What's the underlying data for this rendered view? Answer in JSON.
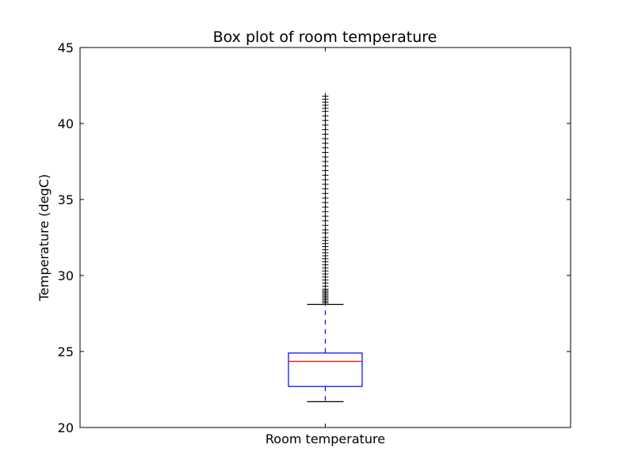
{
  "chart_data": {
    "type": "box",
    "title": "Box plot of room temperature",
    "xlabel": "",
    "ylabel": "Temperature (degC)",
    "categories": [
      "Room temperature"
    ],
    "ylim": [
      20,
      45
    ],
    "yticks": [
      20,
      25,
      30,
      35,
      40,
      45
    ],
    "grid": false,
    "box": {
      "whisker_low": 21.7,
      "q1": 22.7,
      "median": 24.35,
      "q3": 24.9,
      "whisker_high": 28.1
    },
    "outliers": [
      28.2,
      28.3,
      28.4,
      28.5,
      28.6,
      28.7,
      28.8,
      28.9,
      29.0,
      29.1,
      29.3,
      29.5,
      29.7,
      29.9,
      30.1,
      30.3,
      30.5,
      30.7,
      30.9,
      31.1,
      31.3,
      31.5,
      31.7,
      31.9,
      32.1,
      32.3,
      32.5,
      32.8,
      33.0,
      33.3,
      33.6,
      33.9,
      34.2,
      34.5,
      34.8,
      35.1,
      35.4,
      35.7,
      36.0,
      36.3,
      36.6,
      36.9,
      37.2,
      37.5,
      37.8,
      38.1,
      38.4,
      38.7,
      39.0,
      39.3,
      39.6,
      39.9,
      40.2,
      40.5,
      40.8,
      41.0,
      41.2,
      41.4,
      41.6,
      41.8
    ],
    "colors": {
      "box": "#0000ff",
      "median": "#ff0000",
      "whisker": "#0000ff",
      "cap": "#000000",
      "flier": "#000000"
    }
  }
}
